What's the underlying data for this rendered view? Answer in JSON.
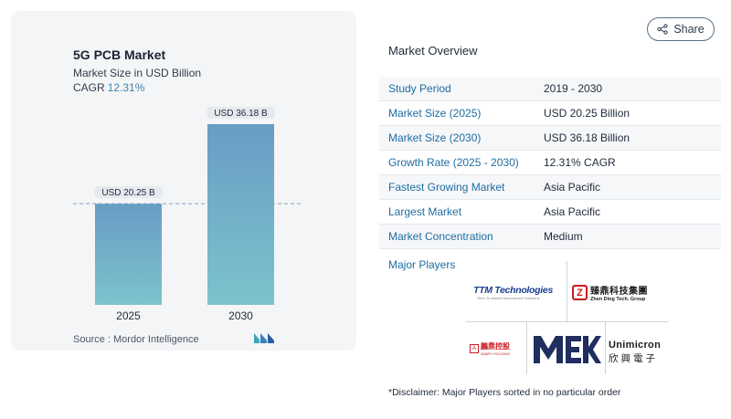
{
  "share": {
    "label": "Share",
    "icon": "share-icon"
  },
  "chart_data": {
    "type": "bar",
    "title": "5G PCB Market",
    "subtitle": "Market Size in USD Billion",
    "cagr_label": "CAGR",
    "cagr_value": "12.31%",
    "categories": [
      "2025",
      "2030"
    ],
    "values": [
      20.25,
      36.18
    ],
    "data_labels": [
      "USD 20.25 B",
      "USD 36.18 B"
    ],
    "ylim": [
      0,
      36.18
    ],
    "reference_line_value": 20.25,
    "bar_color_top": "#6a9cc4",
    "bar_color_bottom": "#7cc3cd",
    "grid": false
  },
  "source": {
    "text": "Source :  Mordor Intelligence",
    "logo": "mordor-intelligence-logo"
  },
  "overview": {
    "title": "Market Overview",
    "rows": [
      {
        "label": "Study Period",
        "value": "2019 - 2030"
      },
      {
        "label": "Market Size (2025)",
        "value": "USD 20.25 Billion"
      },
      {
        "label": "Market Size (2030)",
        "value": "USD 36.18 Billion"
      },
      {
        "label": "Growth Rate (2025 - 2030)",
        "value": "12.31% CAGR"
      },
      {
        "label": "Fastest Growing Market",
        "value": "Asia Pacific"
      },
      {
        "label": "Largest Market",
        "value": "Asia Pacific"
      },
      {
        "label": "Market Concentration",
        "value": "Medium"
      }
    ]
  },
  "players": {
    "title": "Major Players",
    "logos": [
      {
        "name": "TTM Technologies",
        "tagline": "Time-To-Market Interconnect Solutions"
      },
      {
        "name": "臻鼎科技集團",
        "sub": "Zhen Ding Tech. Group"
      },
      {
        "name": "鵬鼎控股",
        "sub": "AVARY HOLDING"
      },
      {
        "name": "MEK"
      },
      {
        "name": "Unimicron",
        "sub": "欣興電子"
      }
    ]
  },
  "disclaimer": "*Disclaimer: Major Players sorted in no particular order"
}
